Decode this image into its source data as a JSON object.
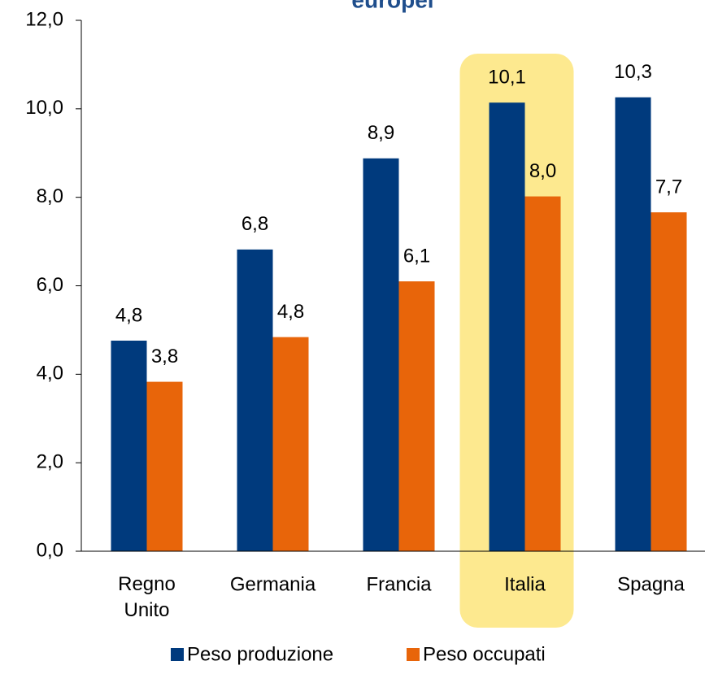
{
  "chart_data": {
    "type": "bar",
    "title": "europei",
    "categories": [
      "Regno Unito",
      "Germania",
      "Francia",
      "Italia",
      "Spagna"
    ],
    "series": [
      {
        "name": "Peso produzione",
        "color": "#003a7d",
        "values": [
          4.76,
          6.82,
          8.88,
          10.14,
          10.26
        ],
        "value_labels": [
          "4,8",
          "6,8",
          "8,9",
          "10,1",
          "10,3"
        ]
      },
      {
        "name": "Peso occupati",
        "color": "#e8650a",
        "values": [
          3.83,
          4.84,
          6.1,
          8.02,
          7.66
        ],
        "value_labels": [
          "3,8",
          "4,8",
          "6,1",
          "8,0",
          "7,7"
        ]
      }
    ],
    "ylim": [
      0,
      12
    ],
    "yticks": [
      {
        "value": 0,
        "label": "0,0"
      },
      {
        "value": 2,
        "label": "2,0"
      },
      {
        "value": 4,
        "label": "4,0"
      },
      {
        "value": 6,
        "label": "6,0"
      },
      {
        "value": 8,
        "label": "8,0"
      },
      {
        "value": 10,
        "label": "10,0"
      },
      {
        "value": 12,
        "label": "12,0"
      }
    ],
    "highlight": "Italia",
    "highlight_color": "#fde98f",
    "legend": "bottom"
  }
}
